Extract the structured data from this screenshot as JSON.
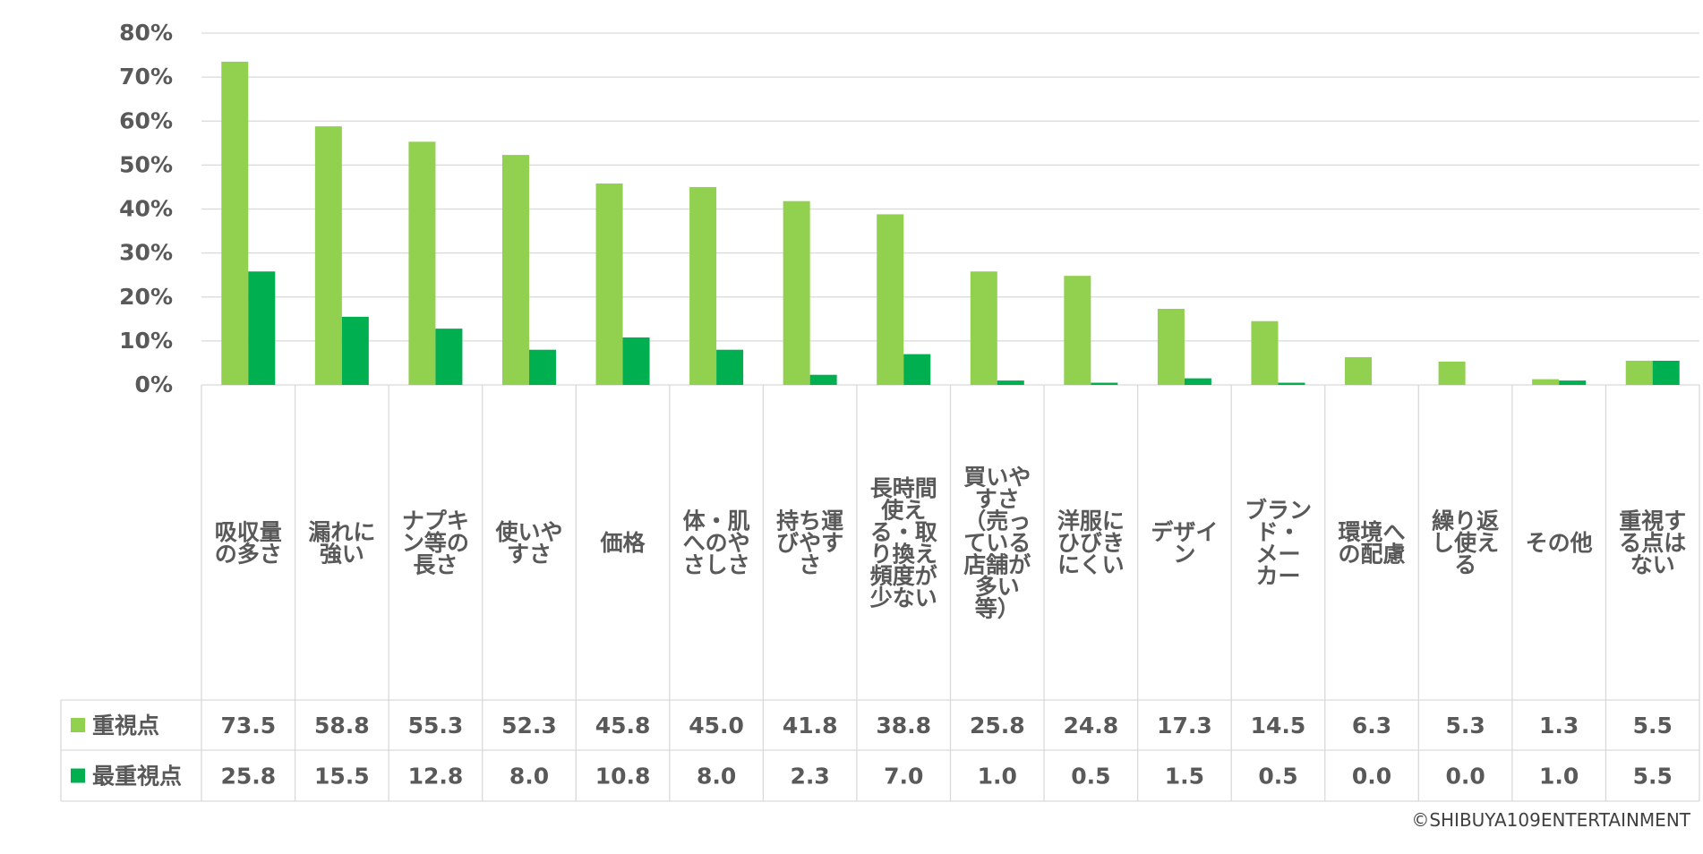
{
  "chart_data": {
    "type": "bar",
    "ylim": [
      0,
      80
    ],
    "y_ticks": [
      "0%",
      "10%",
      "20%",
      "30%",
      "40%",
      "50%",
      "60%",
      "70%",
      "80%"
    ],
    "y_tick_values": [
      0,
      10,
      20,
      30,
      40,
      50,
      60,
      70,
      80
    ],
    "grid": true,
    "categories": [
      [
        "吸収量",
        "の多さ"
      ],
      [
        "漏れに",
        "強い"
      ],
      [
        "ナプキ",
        "ン等の",
        "長さ"
      ],
      [
        "使いや",
        "すさ"
      ],
      [
        "価格"
      ],
      [
        "体・肌",
        "へのや",
        "さしさ"
      ],
      [
        "持ち運",
        "びやす",
        "さ"
      ],
      [
        "長時間",
        "使え",
        "る・取",
        "り換え",
        "頻度が",
        "少ない"
      ],
      [
        "買いや",
        "すさ",
        "（売っ",
        "ている",
        "店舗が",
        "多い",
        "等）"
      ],
      [
        "洋服に",
        "ひびき",
        "にくい"
      ],
      [
        "デザイ",
        "ン"
      ],
      [
        "ブラン",
        "ド・",
        "メー",
        "カー"
      ],
      [
        "環境へ",
        "の配慮"
      ],
      [
        "繰り返",
        "し使え",
        "る"
      ],
      [
        "その他"
      ],
      [
        "重視す",
        "る点は",
        "ない"
      ]
    ],
    "series": [
      {
        "name": "重視点",
        "color": "#92d050",
        "values": [
          73.5,
          58.8,
          55.3,
          52.3,
          45.8,
          45.0,
          41.8,
          38.8,
          25.8,
          24.8,
          17.3,
          14.5,
          6.3,
          5.3,
          1.3,
          5.5
        ],
        "labels": [
          "73.5",
          "58.8",
          "55.3",
          "52.3",
          "45.8",
          "45.0",
          "41.8",
          "38.8",
          "25.8",
          "24.8",
          "17.3",
          "14.5",
          "6.3",
          "5.3",
          "1.3",
          "5.5"
        ]
      },
      {
        "name": "最重視点",
        "color": "#00b050",
        "values": [
          25.8,
          15.5,
          12.8,
          8.0,
          10.8,
          8.0,
          2.3,
          7.0,
          1.0,
          0.5,
          1.5,
          0.5,
          0.0,
          0.0,
          1.0,
          5.5
        ],
        "labels": [
          "25.8",
          "15.5",
          "12.8",
          "8.0",
          "10.8",
          "8.0",
          "2.3",
          "7.0",
          "1.0",
          "0.5",
          "1.5",
          "0.5",
          "0.0",
          "0.0",
          "1.0",
          "5.5"
        ]
      }
    ],
    "legend_placement": "data-table-left"
  },
  "copyright": "©SHIBUYA109ENTERTAINMENT",
  "colors": {
    "grid": "#d9d9d9",
    "text": "#595959",
    "copyright": "#404040"
  }
}
